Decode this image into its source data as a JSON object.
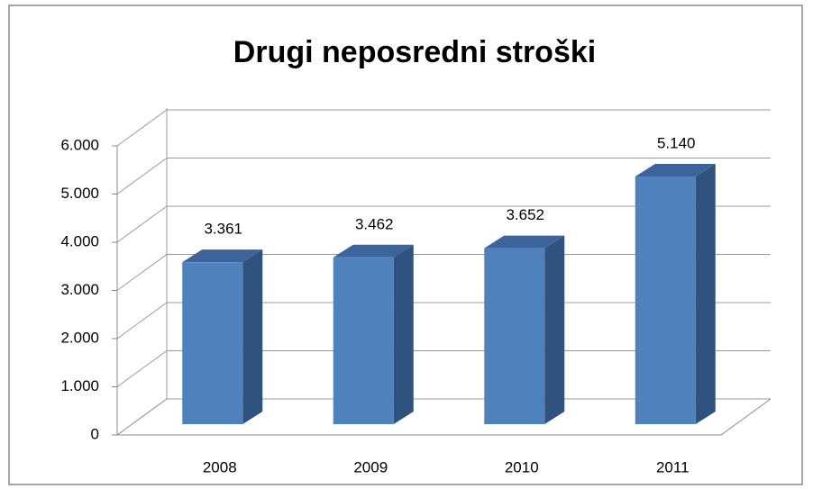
{
  "chart_data": {
    "type": "bar3d",
    "title": "Drugi neposredni stroški",
    "categories": [
      "2008",
      "2009",
      "2010",
      "2011"
    ],
    "values": [
      3361,
      3462,
      3652,
      5140
    ],
    "value_labels": [
      "3.361",
      "3.462",
      "3.652",
      "5.140"
    ],
    "color": "#4f81bd",
    "ylim": [
      0,
      6000
    ],
    "yticks": [
      0,
      {
        "value": 1000,
        "label": "1.000"
      },
      {
        "value": 2000,
        "label": "2.000"
      },
      {
        "value": 3000,
        "label": "3.000"
      },
      {
        "value": 4000,
        "label": "4.000"
      },
      {
        "value": 5000,
        "label": "5.000"
      },
      {
        "value": 6000,
        "label": "6.000"
      }
    ],
    "grid": true
  }
}
